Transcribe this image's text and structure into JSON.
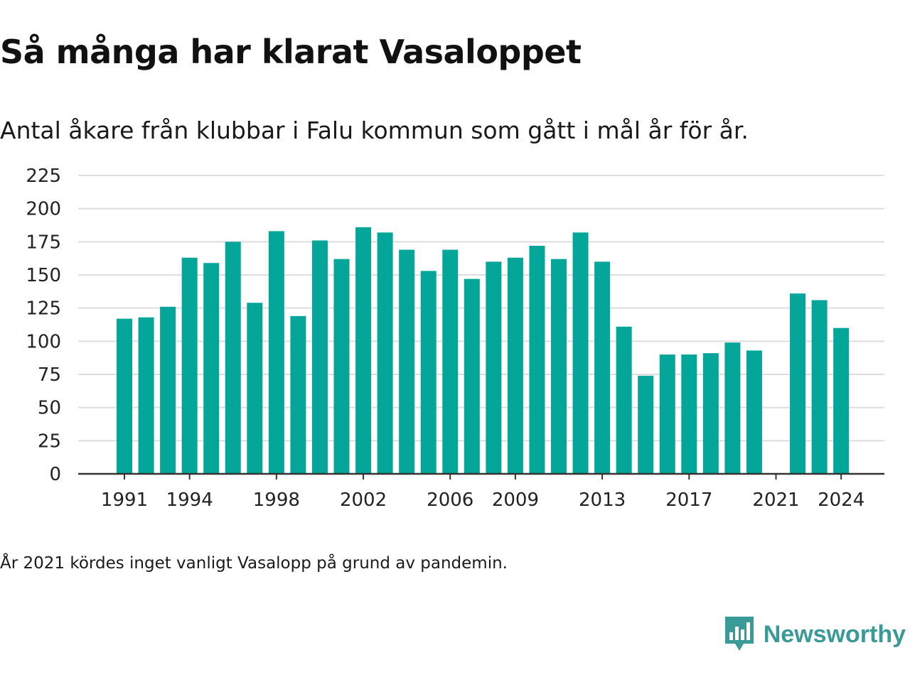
{
  "title": "Så många har klarat Vasaloppet",
  "subtitle": "Antal åkare från klubbar i Falu kommun som gått i mål år för år.",
  "footnote": "År 2021 kördes inget vanligt Vasalopp på grund av pandemin.",
  "brand": {
    "name": "Newsworthy",
    "logo_icon": "newsworthy-logo-icon"
  },
  "colors": {
    "bar": "#05a69a",
    "grid": "#dddddd",
    "axis": "#333333",
    "brand": "#3a9a97"
  },
  "chart_data": {
    "type": "bar",
    "title": "Så många har klarat Vasaloppet",
    "subtitle": "Antal åkare från klubbar i Falu kommun som gått i mål år för år.",
    "xlabel": "",
    "ylabel": "",
    "ylim": [
      0,
      225
    ],
    "yticks": [
      0,
      25,
      50,
      75,
      100,
      125,
      150,
      175,
      200,
      225
    ],
    "xtick_labels": [
      "1991",
      "1994",
      "1998",
      "2002",
      "2006",
      "2009",
      "2013",
      "2017",
      "2021",
      "2024"
    ],
    "grid": true,
    "legend": "none",
    "categories": [
      1991,
      1992,
      1993,
      1994,
      1995,
      1996,
      1997,
      1998,
      1999,
      2000,
      2001,
      2002,
      2003,
      2004,
      2005,
      2006,
      2007,
      2008,
      2009,
      2010,
      2011,
      2012,
      2013,
      2014,
      2015,
      2016,
      2017,
      2018,
      2019,
      2020,
      2021,
      2022,
      2023,
      2024
    ],
    "values": [
      117,
      118,
      126,
      163,
      159,
      175,
      129,
      183,
      119,
      176,
      162,
      186,
      182,
      169,
      153,
      169,
      147,
      160,
      163,
      172,
      162,
      182,
      160,
      111,
      74,
      90,
      90,
      91,
      99,
      93,
      null,
      136,
      131,
      110
    ]
  }
}
